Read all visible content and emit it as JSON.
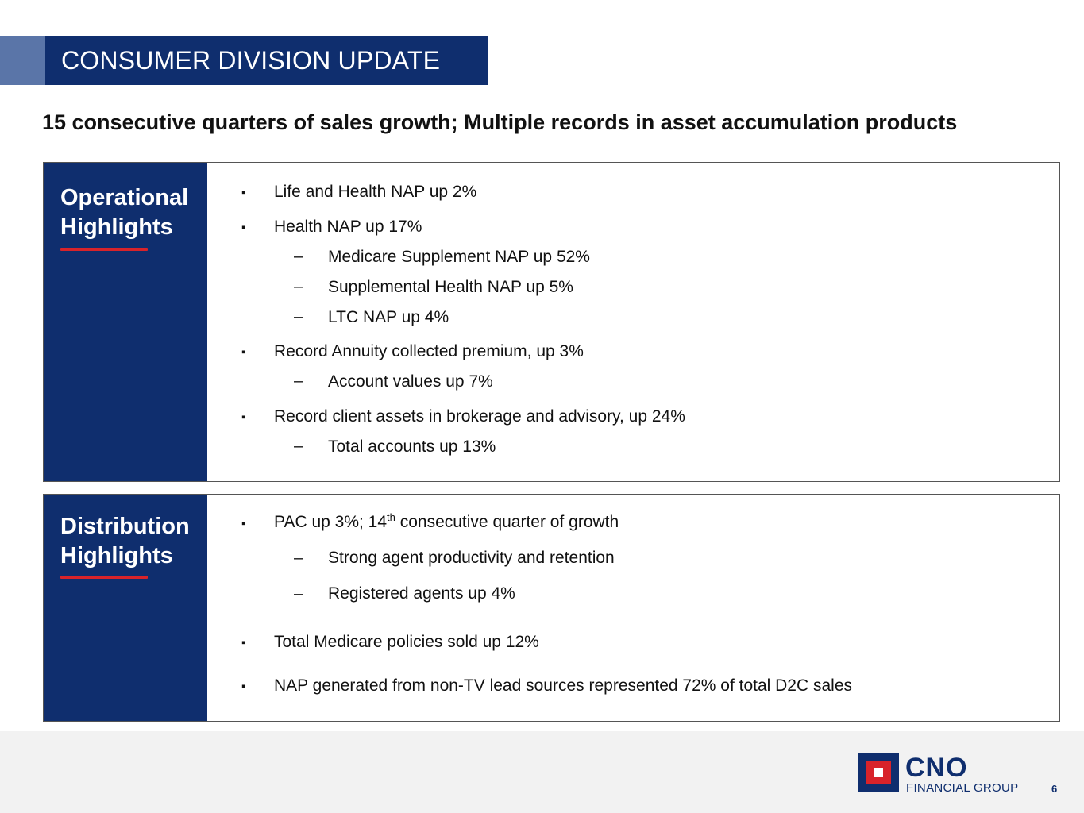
{
  "header": {
    "title": "CONSUMER DIVISION UPDATE"
  },
  "subtitle": "15 consecutive quarters of sales growth; Multiple records in asset accumulation products",
  "operational": {
    "label_line1": "Operational",
    "label_line2": "Highlights",
    "items": [
      "Life and Health NAP up 2%",
      "Health NAP up 17%",
      "Medicare Supplement NAP up 52%",
      "Supplemental Health NAP up 5%",
      "LTC NAP up 4%",
      "Record Annuity collected premium, up 3%",
      "Account values up 7%",
      "Record client assets in brokerage and advisory, up 24%",
      "Total accounts up 13%"
    ]
  },
  "distribution": {
    "label_line1": "Distribution",
    "label_line2": "Highlights",
    "pac_before": "PAC up 3%; 14",
    "pac_sup": "th",
    "pac_after": " consecutive quarter of growth",
    "items": [
      "Strong agent productivity and retention",
      "Registered agents up 4%",
      "Total Medicare policies sold up 12%",
      "NAP generated from non-TV lead sources represented 72% of total D2C sales"
    ]
  },
  "footer": {
    "logo_word": "CNO",
    "logo_sub": "FINANCIAL GROUP",
    "page_number": "6"
  },
  "colors": {
    "navy": "#0f2e6e",
    "accent_blue": "#5a75a8",
    "red": "#d8232a",
    "footer_bg": "#f2f2f2"
  },
  "glyphs": {
    "square": "▪",
    "dash": "–"
  }
}
